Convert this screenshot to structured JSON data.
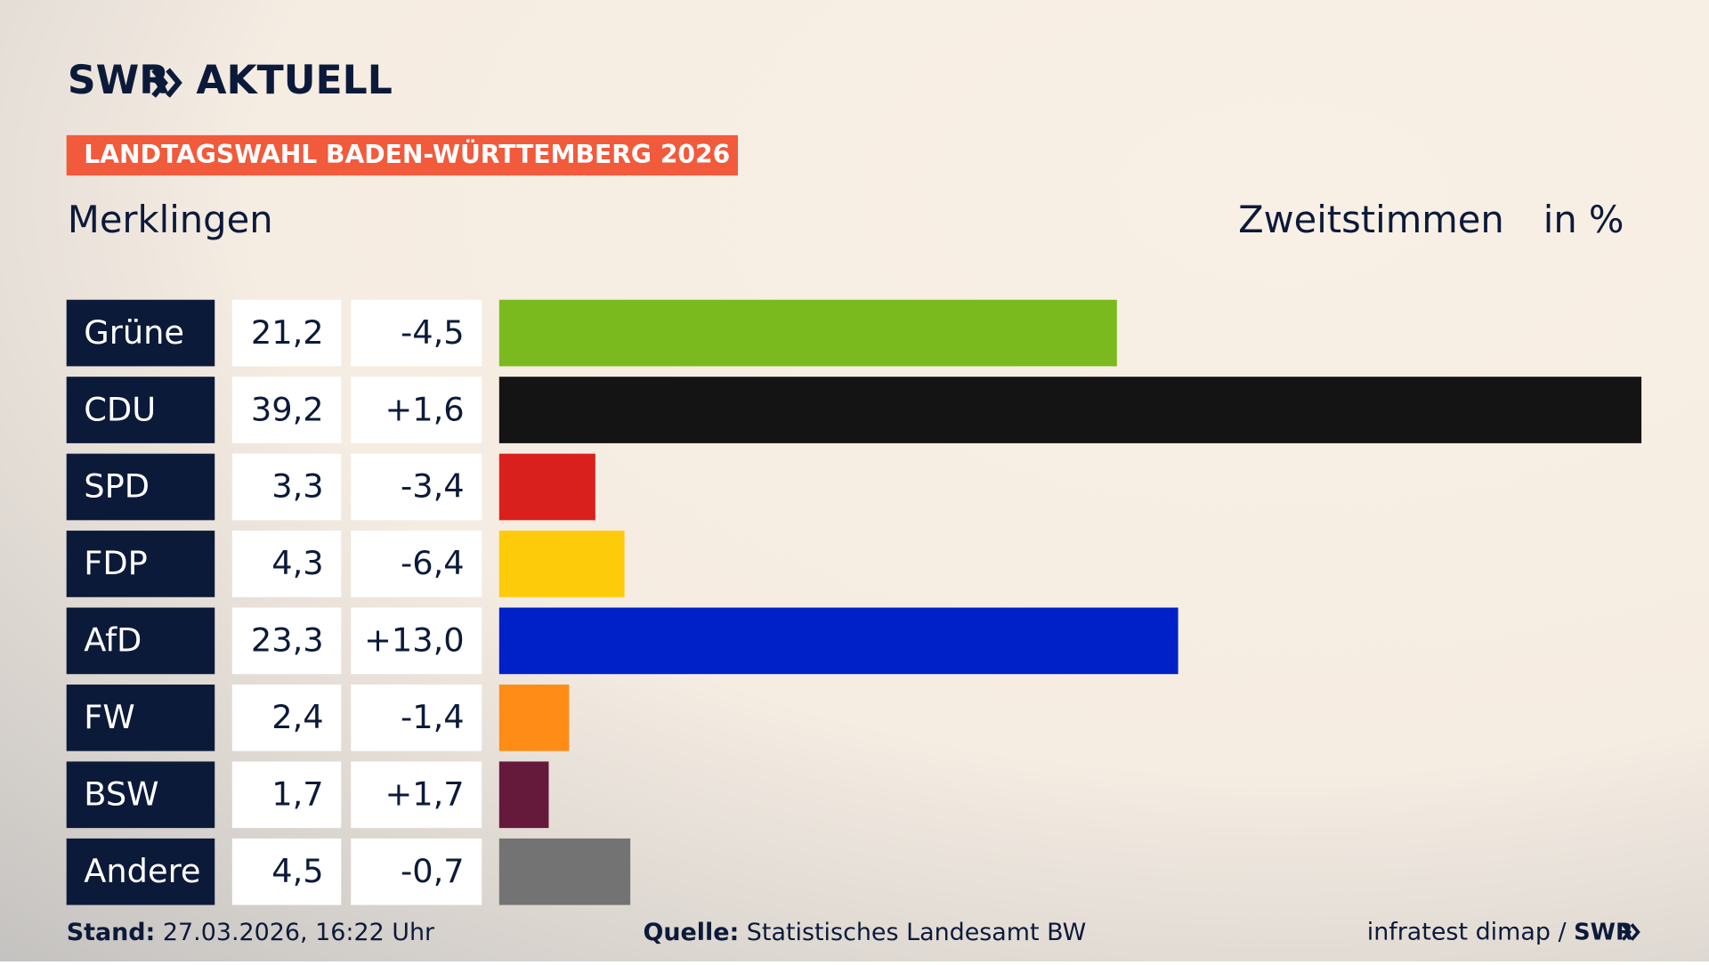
{
  "brand": {
    "name": "SWR",
    "section": "AKTUELL"
  },
  "header": {
    "title": "LANDTAGSWAHL BADEN-WÜRTTEMBERG 2026"
  },
  "chart_data": {
    "type": "bar",
    "subtitle": "Merklingen",
    "measure": "Zweitstimmen",
    "unit": "in %",
    "categories": [
      "Grüne",
      "CDU",
      "SPD",
      "FDP",
      "AfD",
      "FW",
      "BSW",
      "Andere"
    ],
    "values": [
      21.2,
      39.2,
      3.3,
      4.3,
      23.3,
      2.4,
      1.7,
      4.5
    ],
    "value_labels": [
      "21,2",
      "39,2",
      "3,3",
      "4,3",
      "23,3",
      "2,4",
      "1,7",
      "4,5"
    ],
    "changes": [
      -4.5,
      1.6,
      -3.4,
      -6.4,
      13.0,
      -1.4,
      1.7,
      -0.7
    ],
    "change_labels": [
      "-4,5",
      "+1,6",
      "-3,4",
      "-6,4",
      "+13,0",
      "-1,4",
      "+1,7",
      "-0,7"
    ],
    "colors": [
      "#7aba1e",
      "#141414",
      "#d9201c",
      "#fdcb0a",
      "#0020c8",
      "#ff8c16",
      "#651a3c",
      "#737373"
    ]
  },
  "footer": {
    "stand_label": "Stand:",
    "stand": "27.03.2026, 16:22 Uhr",
    "source_label": "Quelle:",
    "source": "Statistisches Landesamt BW",
    "credit": "infratest dimap /",
    "logo": "SWR"
  }
}
